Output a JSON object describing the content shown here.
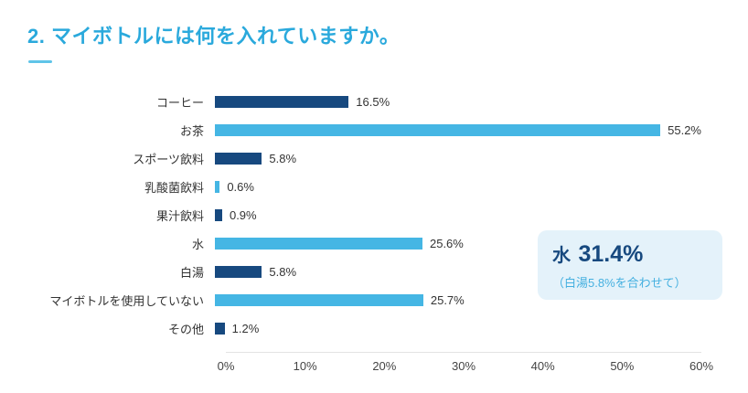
{
  "title": "2. マイボトルには何を入れていますか。",
  "chart_data": {
    "type": "bar",
    "orientation": "horizontal",
    "title": "2. マイボトルには何を入れていますか。",
    "categories": [
      "コーヒー",
      "お茶",
      "スポーツ飲料",
      "乳酸菌飲料",
      "果汁飲料",
      "水",
      "白湯",
      "マイボトルを使用していない",
      "その他"
    ],
    "values": [
      16.5,
      55.2,
      5.8,
      0.6,
      0.9,
      25.6,
      5.8,
      25.7,
      1.2
    ],
    "value_labels": [
      "16.5%",
      "55.2%",
      "5.8%",
      "0.6%",
      "0.9%",
      "25.6%",
      "5.8%",
      "25.7%",
      "1.2%"
    ],
    "xlim": [
      0,
      60
    ],
    "x_ticks": [
      "0%",
      "10%",
      "20%",
      "30%",
      "40%",
      "50%",
      "60%"
    ],
    "bar_colors_alternate": [
      "#17497f",
      "#45b6e4"
    ],
    "grid": false,
    "legend": false
  },
  "callout": {
    "label": "水",
    "value": "31.4%",
    "note": "（白湯5.8%を合わせて）",
    "bg_color": "#e4f2fa",
    "text_color": "#17497f",
    "note_color": "#45b0e0"
  },
  "colors": {
    "title": "#2aa9dc",
    "bar_dark": "#17497f",
    "bar_light": "#45b6e4"
  }
}
